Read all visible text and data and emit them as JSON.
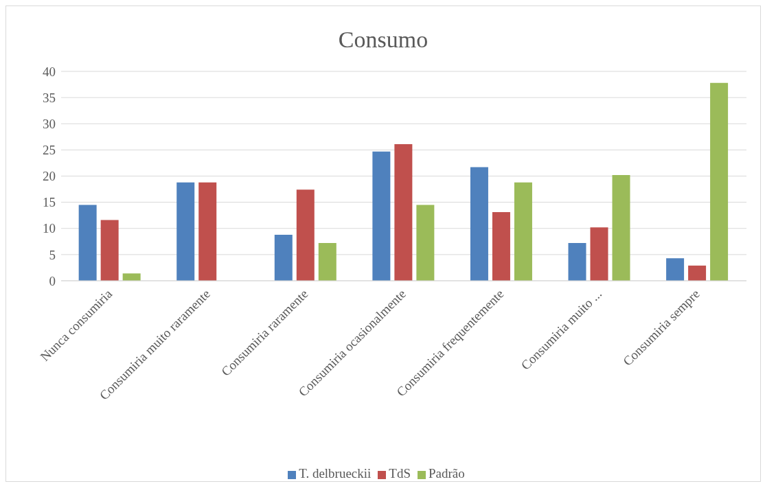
{
  "chart_data": {
    "type": "bar",
    "title": "Consumo",
    "categories": [
      "Nunca consumiria",
      "Consumiria muito raramente",
      "Consumiria raramente",
      "Consumiria ocasionalmente",
      "Consumiria frequentemente",
      "Consumiria muito ...",
      "Consumiria sempre"
    ],
    "series": [
      {
        "name": "T. delbrueckii",
        "color": "#4f81bd",
        "values": [
          14.5,
          18.8,
          8.8,
          24.7,
          21.7,
          7.2,
          4.3
        ]
      },
      {
        "name": "TdS",
        "color": "#c0504d",
        "values": [
          11.6,
          18.8,
          17.4,
          26.1,
          13.1,
          10.2,
          2.9
        ]
      },
      {
        "name": "Padrão",
        "color": "#9bbb59",
        "values": [
          1.4,
          0,
          7.2,
          14.5,
          18.8,
          20.2,
          37.8
        ]
      }
    ],
    "ylim": [
      0,
      40
    ],
    "yticks": [
      0,
      5,
      10,
      15,
      20,
      25,
      30,
      35,
      40
    ],
    "grid": "y",
    "legend": "bottom"
  }
}
